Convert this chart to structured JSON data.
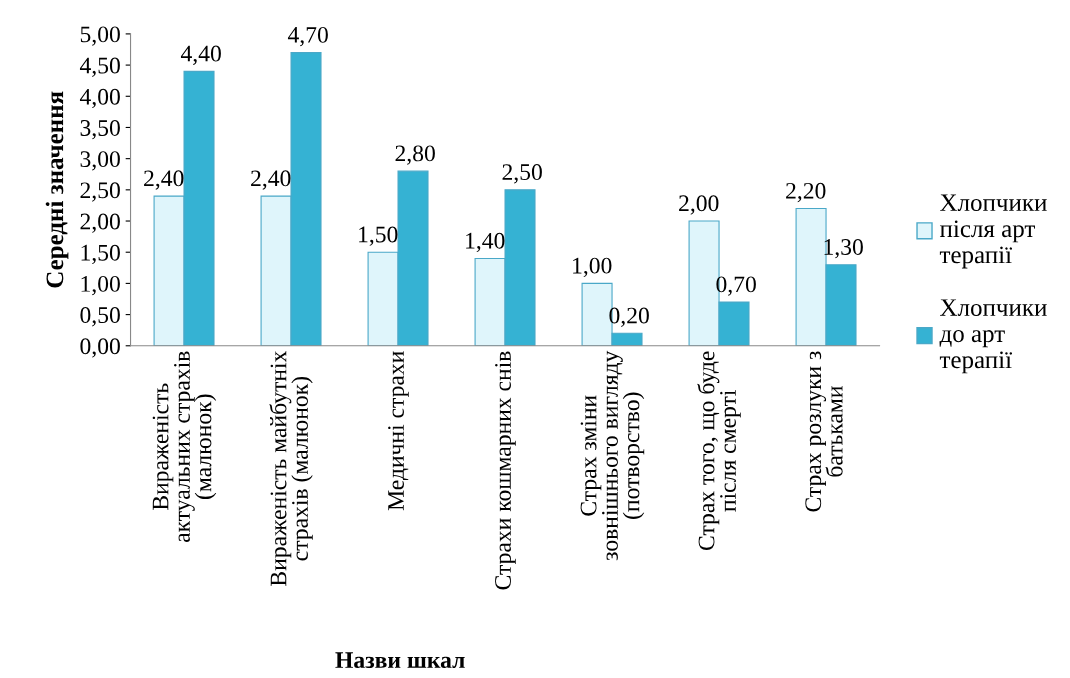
{
  "chart_data": {
    "type": "bar",
    "xlabel": "Назви шкал",
    "ylabel": "Середні значення",
    "categories": [
      "Вираженість\nактуальних страхів\n(малюнок)",
      "Вираженість майбутніх\nстрахів (малюнок)",
      "Медичні страхи",
      "Страхи кошмарних снів",
      "Страх зміни\nзовнішнього вигляду\n(потворство)",
      "Страх того, що буде\nпісля смерті",
      "Страх розлуки з\nбатьками"
    ],
    "series": [
      {
        "name": "Хлопчики\nпісля арт\nтерапії",
        "color": "#dff5fb",
        "values": [
          2.4,
          2.4,
          1.5,
          1.4,
          1.0,
          2.0,
          2.2
        ],
        "value_labels": [
          "2,40",
          "2,40",
          "1,50",
          "1,40",
          "1,00",
          "2,00",
          "2,20"
        ]
      },
      {
        "name": "Хлопчики\nдо арт\nтерапії",
        "color": "#35b2d3",
        "values": [
          4.4,
          4.7,
          2.8,
          2.5,
          0.2,
          0.7,
          1.3
        ],
        "value_labels": [
          "4,40",
          "4,70",
          "2,80",
          "2,50",
          "0,20",
          "0,70",
          "1,30"
        ]
      }
    ],
    "ylim": [
      0,
      5
    ],
    "yticks": [
      {
        "value": 0,
        "label": "0,00"
      },
      {
        "value": 0.5,
        "label": "0,50"
      },
      {
        "value": 1,
        "label": "1,00"
      },
      {
        "value": 1.5,
        "label": "1,50"
      },
      {
        "value": 2,
        "label": "2,00"
      },
      {
        "value": 2.5,
        "label": "2,50"
      },
      {
        "value": 3,
        "label": "3,00"
      },
      {
        "value": 3.5,
        "label": "3,50"
      },
      {
        "value": 4,
        "label": "4,00"
      },
      {
        "value": 4.5,
        "label": "4,50"
      },
      {
        "value": 5,
        "label": "5,00"
      }
    ],
    "grid": false,
    "legend": "right"
  }
}
